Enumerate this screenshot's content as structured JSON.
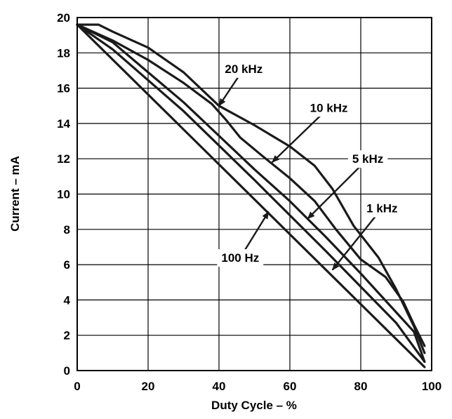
{
  "chart_data": {
    "type": "line",
    "title": "",
    "xlabel": "Duty Cycle – %",
    "ylabel": "Current – mA",
    "xlim": [
      0,
      100
    ],
    "ylim": [
      0,
      20
    ],
    "x_ticks": [
      0,
      20,
      40,
      60,
      80,
      100
    ],
    "y_ticks": [
      0,
      2,
      4,
      6,
      8,
      10,
      12,
      14,
      16,
      18,
      20
    ],
    "grid": true,
    "legend": "none",
    "colors": {
      "line": "#1a1a1a",
      "grid": "#000000",
      "background": "#ffffff"
    },
    "series": [
      {
        "name": "100 Hz",
        "x": [
          0,
          98
        ],
        "y": [
          19.6,
          0.2
        ]
      },
      {
        "name": "1 kHz",
        "x": [
          0,
          10,
          30,
          50,
          70,
          90,
          98
        ],
        "y": [
          19.6,
          18.2,
          14.7,
          10.8,
          6.8,
          2.7,
          0.5
        ]
      },
      {
        "name": "5 kHz",
        "x": [
          0,
          10,
          20,
          30,
          40,
          50,
          60,
          70,
          80,
          90,
          95,
          98
        ],
        "y": [
          19.6,
          18.6,
          16.9,
          15.2,
          13.3,
          11.4,
          9.6,
          7.6,
          5.5,
          3.3,
          2.2,
          0.5
        ]
      },
      {
        "name": "10 kHz",
        "x": [
          0,
          10,
          20,
          30,
          38,
          42,
          46,
          52,
          60,
          67,
          73,
          80,
          87,
          92,
          95,
          98
        ],
        "y": [
          19.6,
          18.7,
          17.6,
          16.3,
          15.1,
          14.2,
          13.2,
          12.2,
          10.9,
          9.6,
          8.0,
          6.3,
          5.3,
          3.9,
          2.6,
          1.4
        ]
      },
      {
        "name": "20 kHz",
        "x": [
          0,
          6,
          10,
          20,
          30,
          40,
          50,
          60,
          67,
          72,
          78,
          85,
          90,
          95,
          98
        ],
        "y": [
          19.6,
          19.6,
          19.2,
          18.3,
          16.9,
          15.0,
          13.9,
          12.7,
          11.6,
          10.3,
          8.2,
          6.4,
          4.6,
          2.5,
          1.0
        ]
      }
    ],
    "annotations": [
      {
        "text": "20 kHz",
        "series": "20 kHz",
        "label_x": 47,
        "label_y": 17.1,
        "arrow_to_x": 40,
        "arrow_to_y": 15.0
      },
      {
        "text": "10 kHz",
        "series": "10 kHz",
        "label_x": 71,
        "label_y": 14.9,
        "arrow_to_x": 55,
        "arrow_to_y": 11.8
      },
      {
        "text": "5 kHz",
        "series": "5 kHz",
        "label_x": 82,
        "label_y": 12.0,
        "arrow_to_x": 65,
        "arrow_to_y": 8.6
      },
      {
        "text": "1 kHz",
        "series": "1 kHz",
        "label_x": 86,
        "label_y": 9.2,
        "arrow_to_x": 72,
        "arrow_to_y": 5.7
      },
      {
        "text": "100 Hz",
        "series": "100 Hz",
        "label_x": 46,
        "label_y": 6.4,
        "arrow_to_x": 54,
        "arrow_to_y": 9.0
      }
    ]
  }
}
